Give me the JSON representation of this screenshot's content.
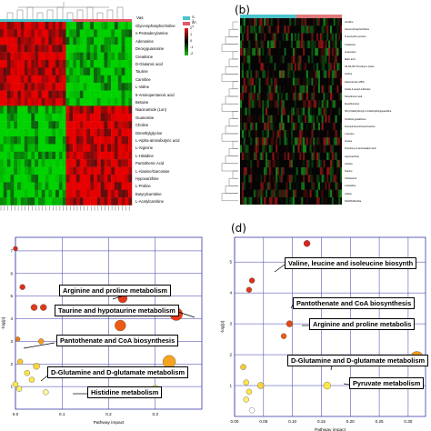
{
  "panels": {
    "a": {
      "rows": [
        "Glycerophosphocholine",
        "n-Pentadecylamine",
        "Adenosine",
        "Deoxyguanosine",
        "Creatinine",
        "D-Glutamic acid",
        "Taurine",
        "Carnitine",
        "L-Valine",
        "5-Aminopentanoic acid",
        "Betaine",
        "Niacinamide (Lon)",
        "Guanosine",
        "Choline",
        "Dimethylglycine",
        "L-Alpha-aminobutyric acid",
        "L-Arginine",
        "L-Histidine",
        "Pantothenic Acid",
        "L-Alanine/Sarcosine",
        "Hypoxanthine",
        "L-Proline",
        "Butyrylcarnitine",
        "L-Acetylcarnitine"
      ],
      "top_label": "Vas",
      "legend": [
        {
          "name": "S-1",
          "color": "#4bc3c9"
        },
        {
          "name": "AF-1",
          "color": "#e05a6a"
        }
      ],
      "scale_labels": [
        "2",
        "1",
        "0",
        "-1",
        "-2"
      ]
    },
    "b": {
      "label": "(b)",
      "rows": [
        "citrulline",
        "Glycerophosphocholine",
        "N-acetyl-DL-tyrosine",
        "Creatinine",
        "Guanosine",
        "Malic acid",
        "N6,N6,N6-Trimethyl-L-lysine",
        "choline",
        "Niacinamide (VB3)",
        "Indole-3-acetyl-sulfonate",
        "Pantothenic acid",
        "Ergothioneine",
        "N5-(3-Methylbutyl)-2,3-Diethylbutylguanidine",
        "Oxidized glutathione",
        "Tauropine/Laminine/Anserine",
        "L-leucine",
        "Inosine",
        "N-hydroxy-2-aminoadipic acid",
        "Hypoxanthine",
        "Choline",
        "Taurine",
        "Cholesterol",
        "L-Histidine",
        "uridine",
        "NAD/NADH-like"
      ]
    },
    "c": {
      "ylabel": "-log(p)",
      "xlabel": "Pathway impact",
      "xticks": [
        "0.0",
        "0.1",
        "0.2",
        "0.3"
      ],
      "yticks": [
        "1",
        "2",
        "3",
        "4",
        "5",
        "6",
        "7"
      ],
      "annotations": [
        "Arginine and proline metabolism",
        "Taurine and hypotaurine metabolism",
        "Pantothenate and CoA biosynthesis",
        "D-Glutamine and D-glutamate metabolism",
        "Histidine metabolism"
      ]
    },
    "d": {
      "label": "(d)",
      "ylabel": "-log(p)",
      "xlabel": "Pathway impact",
      "xticks": [
        "0.00",
        "0.05",
        "0.10",
        "0.15",
        "0.20",
        "0.25",
        "0.30"
      ],
      "yticks": [
        "1",
        "2",
        "3",
        "4",
        "5"
      ],
      "annotations": [
        "Valine, leucine and isoleucine biosynth",
        "Pantothenate and CoA biosynthesis",
        "Arginine and proline metabolis",
        "D-Glutamine and D-glutamate metabolism",
        "Pyruvate metabolism"
      ]
    }
  },
  "chart_data": [
    {
      "type": "scatter",
      "xlabel": "Pathway impact",
      "ylabel": "-log(p)",
      "xlim": [
        0,
        0.4
      ],
      "ylim": [
        0,
        7.6
      ],
      "points": [
        {
          "x": 0.0,
          "y": 7.1,
          "r": 2.5,
          "color": "#d8251a"
        },
        {
          "x": 0.015,
          "y": 5.4,
          "r": 3,
          "color": "#d8301a"
        },
        {
          "x": 0.04,
          "y": 4.5,
          "r": 3.5,
          "color": "#e03a1a"
        },
        {
          "x": 0.06,
          "y": 4.5,
          "r": 3.5,
          "color": "#e03a1a"
        },
        {
          "x": 0.23,
          "y": 4.9,
          "r": 5,
          "color": "#e03a1a"
        },
        {
          "x": 0.345,
          "y": 4.2,
          "r": 7,
          "color": "#ee3a12"
        },
        {
          "x": 0.225,
          "y": 3.7,
          "r": 6,
          "color": "#ee5a12"
        },
        {
          "x": 0.005,
          "y": 3.1,
          "r": 2.5,
          "color": "#f07b16"
        },
        {
          "x": 0.055,
          "y": 3.0,
          "r": 3,
          "color": "#f39a1c"
        },
        {
          "x": 0.33,
          "y": 2.1,
          "r": 7,
          "color": "#f6a41f"
        },
        {
          "x": 0.01,
          "y": 2.1,
          "r": 3,
          "color": "#f9c830"
        },
        {
          "x": 0.045,
          "y": 1.9,
          "r": 3.5,
          "color": "#f9d43a"
        },
        {
          "x": 0.025,
          "y": 1.6,
          "r": 3,
          "color": "#fbe640"
        },
        {
          "x": 0.035,
          "y": 1.3,
          "r": 3,
          "color": "#fde84a"
        },
        {
          "x": 0.0,
          "y": 1.1,
          "r": 3,
          "color": "#fde84a"
        },
        {
          "x": 0.008,
          "y": 0.9,
          "r": 3,
          "color": "#fdf070"
        },
        {
          "x": 0.3,
          "y": 0.9,
          "r": 4,
          "color": "#fde84a"
        },
        {
          "x": 0.065,
          "y": 0.75,
          "r": 3,
          "color": "#fdf4a0"
        }
      ]
    },
    {
      "type": "scatter",
      "xlabel": "Pathway impact",
      "ylabel": "-log(p)",
      "xlim": [
        0,
        0.33
      ],
      "ylim": [
        0,
        5.8
      ],
      "points": [
        {
          "x": 0.125,
          "y": 5.6,
          "r": 3.5,
          "color": "#d8251a"
        },
        {
          "x": 0.03,
          "y": 4.4,
          "r": 3,
          "color": "#d8301a"
        },
        {
          "x": 0.025,
          "y": 4.1,
          "r": 3,
          "color": "#e03a1a"
        },
        {
          "x": 0.095,
          "y": 3.0,
          "r": 3.5,
          "color": "#e24a16"
        },
        {
          "x": 0.085,
          "y": 2.6,
          "r": 3,
          "color": "#ee5a12"
        },
        {
          "x": 0.315,
          "y": 1.9,
          "r": 7,
          "color": "#f39a1c"
        },
        {
          "x": 0.015,
          "y": 1.6,
          "r": 3,
          "color": "#f9c830"
        },
        {
          "x": 0.045,
          "y": 1.0,
          "r": 3.5,
          "color": "#f9d43a"
        },
        {
          "x": 0.02,
          "y": 1.1,
          "r": 3,
          "color": "#fde84a"
        },
        {
          "x": 0.16,
          "y": 1.0,
          "r": 4,
          "color": "#fde84a"
        },
        {
          "x": 0.025,
          "y": 0.8,
          "r": 3,
          "color": "#fde84a"
        },
        {
          "x": 0.02,
          "y": 0.55,
          "r": 3,
          "color": "#fdf070"
        },
        {
          "x": 0.03,
          "y": 0.2,
          "r": 3,
          "color": "#ffffff"
        }
      ]
    }
  ]
}
